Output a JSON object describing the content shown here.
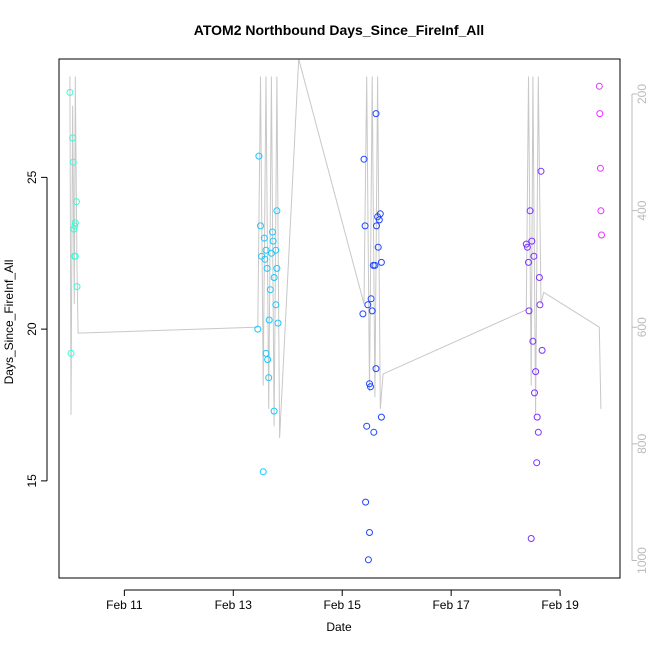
{
  "chart_data": {
    "type": "scatter",
    "title": "ATOM2 Northbound Days_Since_FireInf_All",
    "xlabel": "Date",
    "ylabel": "Days_Since_FireInf_All",
    "x_ticks": [
      "Feb 11",
      "Feb 13",
      "Feb 15",
      "Feb 17",
      "Feb 19"
    ],
    "y_ticks": [
      "15",
      "20",
      "25"
    ],
    "y2_ticks": [
      "200",
      "400",
      "600",
      "800",
      "1000"
    ],
    "xlim_days": [
      9.8,
      20.1
    ],
    "ylim": [
      11.8,
      28.9
    ],
    "y2lim": [
      1030,
      140
    ],
    "point_colors": {
      "g1": "#33ffd6",
      "g2": "#19c7ff",
      "g3": "#1f45ff",
      "g4": "#7a33ff",
      "g5": "#e633ff"
    },
    "line_color": "#c8c8c8",
    "series": [
      {
        "group": "g1",
        "x": [
          10.0,
          10.02,
          10.05,
          10.06,
          10.07,
          10.08,
          10.09,
          10.1,
          10.1,
          10.12,
          10.13
        ],
        "y": [
          27.8,
          19.2,
          26.3,
          25.5,
          23.3,
          22.4,
          23.4,
          22.4,
          23.5,
          24.2,
          21.4
        ]
      },
      {
        "group": "g2",
        "x": [
          13.45,
          13.47,
          13.5,
          13.52,
          13.55,
          13.57,
          13.58,
          13.6,
          13.6,
          13.62,
          13.63,
          13.65,
          13.66,
          13.68,
          13.7,
          13.72,
          13.73,
          13.75,
          13.75,
          13.78,
          13.78,
          13.8,
          13.8,
          13.82
        ],
        "y": [
          20.0,
          25.7,
          23.4,
          22.4,
          15.3,
          23.0,
          22.3,
          22.6,
          19.2,
          22.0,
          19.0,
          18.4,
          20.3,
          21.3,
          22.5,
          23.2,
          22.9,
          21.7,
          17.3,
          22.6,
          20.8,
          23.9,
          22.0,
          20.2
        ]
      },
      {
        "group": "g3",
        "x": [
          15.38,
          15.4,
          15.42,
          15.43,
          15.45,
          15.47,
          15.48,
          15.5,
          15.5,
          15.52,
          15.53,
          15.55,
          15.57,
          15.58,
          15.6,
          15.62,
          15.62,
          15.63,
          15.65,
          15.66,
          15.68,
          15.7,
          15.72,
          15.72
        ],
        "y": [
          20.5,
          25.6,
          23.4,
          14.3,
          16.8,
          20.8,
          12.4,
          13.3,
          18.2,
          18.1,
          21.0,
          20.6,
          22.1,
          16.6,
          22.1,
          18.7,
          27.1,
          23.4,
          23.7,
          22.7,
          23.6,
          23.8,
          22.2,
          17.1
        ]
      },
      {
        "group": "g4",
        "x": [
          18.38,
          18.4,
          18.42,
          18.43,
          18.45,
          18.47,
          18.48,
          18.5,
          18.52,
          18.53,
          18.55,
          18.57,
          18.58,
          18.6,
          18.62,
          18.63,
          18.65,
          18.67
        ],
        "y": [
          22.8,
          22.7,
          22.2,
          20.6,
          23.9,
          13.1,
          22.9,
          19.6,
          22.4,
          17.9,
          18.6,
          15.6,
          17.1,
          16.6,
          21.7,
          20.8,
          25.2,
          19.3
        ]
      },
      {
        "group": "g5",
        "x": [
          19.72,
          19.73,
          19.74,
          19.75,
          19.76
        ],
        "y": [
          28.0,
          27.1,
          25.3,
          23.9,
          23.1
        ]
      }
    ],
    "line_x": [
      10.0,
      10.02,
      10.05,
      10.08,
      10.1,
      10.13,
      10.15,
      13.45,
      13.5,
      13.55,
      13.6,
      13.65,
      13.7,
      13.75,
      13.8,
      13.85,
      14.2,
      15.4,
      15.45,
      15.5,
      15.55,
      15.6,
      15.65,
      15.7,
      15.75,
      18.38,
      18.42,
      18.47,
      18.5,
      18.55,
      18.6,
      18.65,
      18.7,
      19.72,
      19.75
    ],
    "line_y2": [
      170,
      750,
      220,
      560,
      170,
      500,
      610,
      600,
      170,
      700,
      170,
      740,
      170,
      770,
      170,
      790,
      140,
      560,
      170,
      710,
      170,
      720,
      170,
      740,
      680,
      570,
      170,
      700,
      170,
      750,
      170,
      560,
      540,
      600,
      740
    ]
  }
}
